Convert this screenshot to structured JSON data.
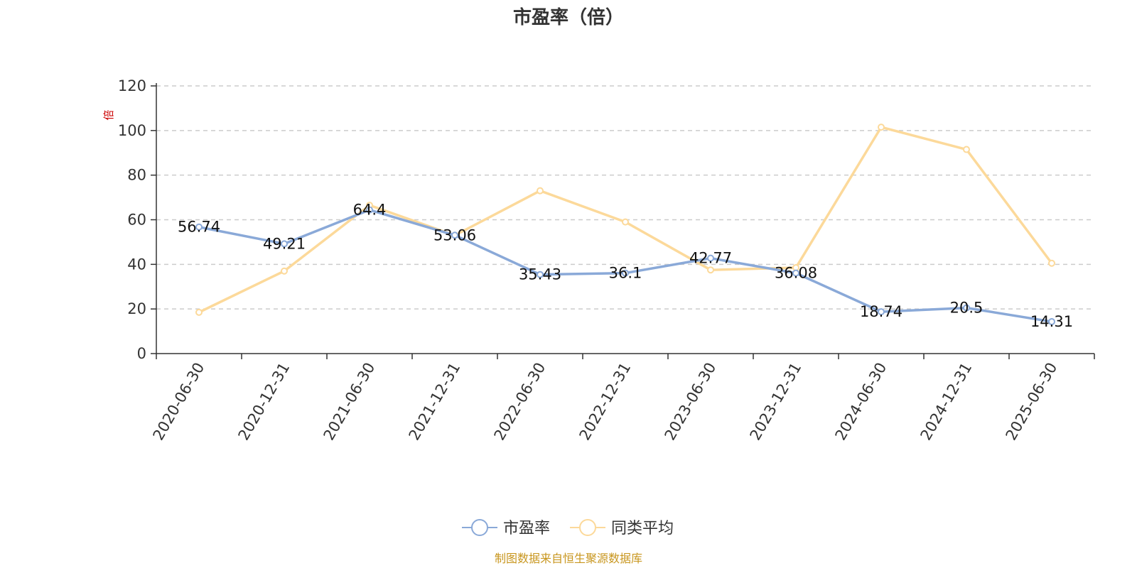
{
  "chart_data": {
    "type": "line",
    "title": "市盈率（倍）",
    "ylabel": "倍",
    "xlabel": "",
    "ylim": [
      0,
      120
    ],
    "yticks": [
      0,
      20,
      40,
      60,
      80,
      100,
      120
    ],
    "grid": true,
    "legend_position": "bottom",
    "categories": [
      "2020-06-30",
      "2020-12-31",
      "2021-06-30",
      "2021-12-31",
      "2022-06-30",
      "2022-12-31",
      "2023-06-30",
      "2023-12-31",
      "2024-06-30",
      "2024-12-31",
      "2025-06-30"
    ],
    "series": [
      {
        "name": "市盈率",
        "color": "#8aa9d8",
        "values": [
          56.74,
          49.21,
          64.4,
          53.06,
          35.43,
          36.1,
          42.77,
          36.08,
          18.74,
          20.5,
          14.31
        ],
        "labels": [
          "56.74",
          "49.21",
          "64.4",
          "53.06",
          "35.43",
          "36.1",
          "42.77",
          "36.08",
          "18.74",
          "20.5",
          "14.31"
        ]
      },
      {
        "name": "同类平均",
        "color": "#fcd99a",
        "values": [
          18.5,
          37.0,
          66.5,
          53.0,
          73.0,
          59.0,
          37.5,
          38.5,
          101.5,
          91.5,
          40.5
        ]
      }
    ]
  },
  "source": "制图数据来自恒生聚源数据库",
  "colors": {
    "source": "#c8961e",
    "unit": "#cc0000",
    "axis": "#333333",
    "grid": "#cccccc"
  }
}
